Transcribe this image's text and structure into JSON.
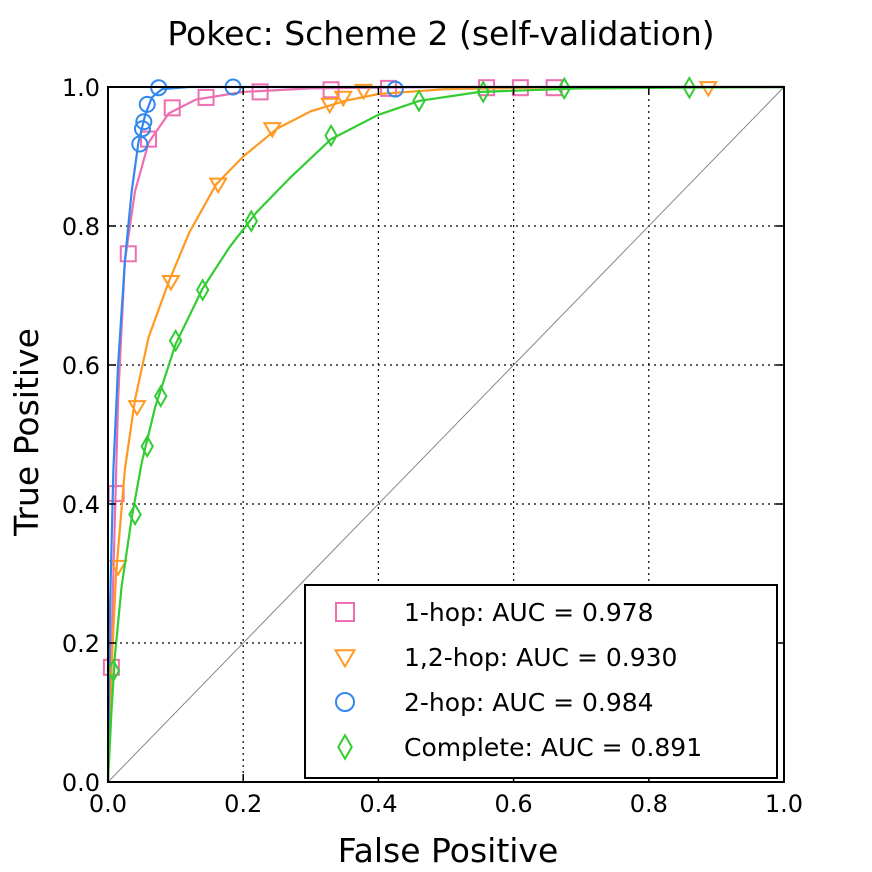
{
  "chart_data": {
    "type": "line",
    "title": "Pokec: Scheme 2 (self-validation)",
    "xlabel": "False Positive",
    "ylabel": "True Positive",
    "xlim": [
      0.0,
      1.0
    ],
    "ylim": [
      0.0,
      1.0
    ],
    "xticks": [
      "0.0",
      "0.2",
      "0.4",
      "0.6",
      "0.8",
      "1.0"
    ],
    "yticks": [
      "0.0",
      "0.2",
      "0.4",
      "0.6",
      "0.8",
      "1.0"
    ],
    "grid": true,
    "diagonal": true,
    "legend_position": "lower-right",
    "series": [
      {
        "name": "1-hop: AUC = 0.978",
        "color": "#ee6eb0",
        "marker": "square",
        "curve": [
          [
            0,
            0
          ],
          [
            0.003,
            0.12
          ],
          [
            0.008,
            0.3
          ],
          [
            0.015,
            0.55
          ],
          [
            0.025,
            0.75
          ],
          [
            0.04,
            0.85
          ],
          [
            0.06,
            0.92
          ],
          [
            0.09,
            0.962
          ],
          [
            0.13,
            0.982
          ],
          [
            0.2,
            0.993
          ],
          [
            0.3,
            0.998
          ],
          [
            0.5,
            1.0
          ],
          [
            1.0,
            1.0
          ]
        ],
        "points": [
          [
            0.005,
            0.165
          ],
          [
            0.012,
            0.415
          ],
          [
            0.03,
            0.76
          ],
          [
            0.06,
            0.925
          ],
          [
            0.095,
            0.97
          ],
          [
            0.145,
            0.985
          ],
          [
            0.225,
            0.993
          ],
          [
            0.33,
            0.996
          ],
          [
            0.415,
            0.998
          ],
          [
            0.56,
            0.999
          ],
          [
            0.61,
            0.999
          ],
          [
            0.66,
            0.999
          ]
        ]
      },
      {
        "name": "1,2-hop: AUC = 0.930",
        "color": "#ff9922",
        "marker": "triangle-down",
        "curve": [
          [
            0,
            0
          ],
          [
            0.005,
            0.16
          ],
          [
            0.012,
            0.3
          ],
          [
            0.025,
            0.45
          ],
          [
            0.04,
            0.55
          ],
          [
            0.06,
            0.64
          ],
          [
            0.09,
            0.72
          ],
          [
            0.12,
            0.79
          ],
          [
            0.16,
            0.86
          ],
          [
            0.2,
            0.9
          ],
          [
            0.25,
            0.94
          ],
          [
            0.3,
            0.965
          ],
          [
            0.35,
            0.98
          ],
          [
            0.4,
            0.99
          ],
          [
            0.5,
            0.997
          ],
          [
            0.7,
            1.0
          ],
          [
            1.0,
            1.0
          ]
        ],
        "points": [
          [
            0.015,
            0.31
          ],
          [
            0.043,
            0.54
          ],
          [
            0.093,
            0.72
          ],
          [
            0.163,
            0.86
          ],
          [
            0.243,
            0.94
          ],
          [
            0.328,
            0.975
          ],
          [
            0.348,
            0.985
          ],
          [
            0.378,
            0.995
          ],
          [
            0.888,
            0.999
          ]
        ]
      },
      {
        "name": "2-hop: AUC = 0.984",
        "color": "#3388ee",
        "marker": "circle",
        "curve": [
          [
            0,
            0
          ],
          [
            0.003,
            0.25
          ],
          [
            0.008,
            0.45
          ],
          [
            0.015,
            0.6
          ],
          [
            0.025,
            0.75
          ],
          [
            0.035,
            0.85
          ],
          [
            0.045,
            0.92
          ],
          [
            0.055,
            0.96
          ],
          [
            0.065,
            0.985
          ],
          [
            0.08,
            0.997
          ],
          [
            0.12,
            1.0
          ],
          [
            1.0,
            1.0
          ]
        ],
        "points": [
          [
            0.047,
            0.918
          ],
          [
            0.051,
            0.94
          ],
          [
            0.053,
            0.95
          ],
          [
            0.058,
            0.975
          ],
          [
            0.075,
            0.999
          ],
          [
            0.185,
            1.0
          ],
          [
            0.425,
            0.997
          ]
        ]
      },
      {
        "name": "Complete: AUC = 0.891",
        "color": "#33cc33",
        "marker": "diamond",
        "curve": [
          [
            0,
            0
          ],
          [
            0.005,
            0.1
          ],
          [
            0.01,
            0.18
          ],
          [
            0.02,
            0.28
          ],
          [
            0.035,
            0.38
          ],
          [
            0.05,
            0.46
          ],
          [
            0.07,
            0.54
          ],
          [
            0.1,
            0.63
          ],
          [
            0.14,
            0.71
          ],
          [
            0.18,
            0.77
          ],
          [
            0.22,
            0.82
          ],
          [
            0.27,
            0.87
          ],
          [
            0.33,
            0.925
          ],
          [
            0.4,
            0.96
          ],
          [
            0.46,
            0.98
          ],
          [
            0.55,
            0.993
          ],
          [
            0.7,
            0.998
          ],
          [
            1.0,
            1.0
          ]
        ],
        "points": [
          [
            0.008,
            0.16
          ],
          [
            0.04,
            0.385
          ],
          [
            0.058,
            0.483
          ],
          [
            0.078,
            0.555
          ],
          [
            0.1,
            0.635
          ],
          [
            0.14,
            0.708
          ],
          [
            0.212,
            0.807
          ],
          [
            0.33,
            0.93
          ],
          [
            0.46,
            0.98
          ],
          [
            0.555,
            0.993
          ],
          [
            0.675,
            0.998
          ],
          [
            0.86,
            0.999
          ]
        ]
      }
    ]
  }
}
